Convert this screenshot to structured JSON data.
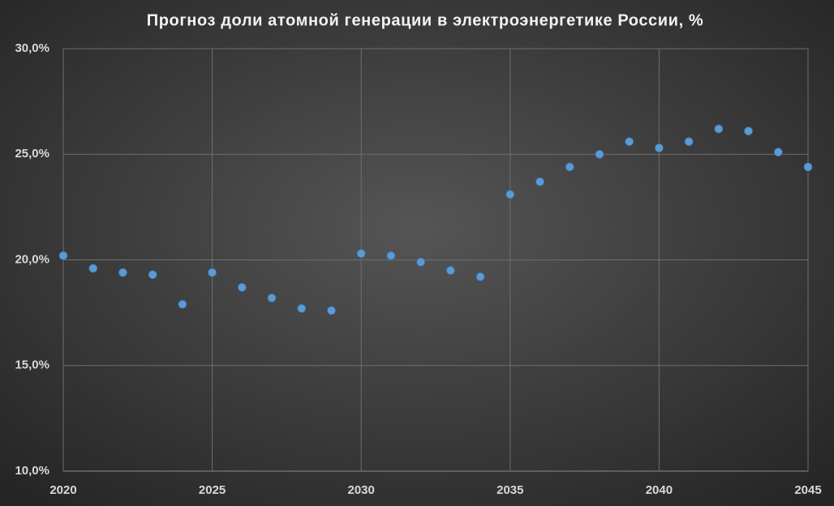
{
  "chart_data": {
    "type": "scatter",
    "title": "Прогноз доли атомной генерации в электроэнергетике России, %",
    "x": [
      2020,
      2021,
      2022,
      2023,
      2024,
      2025,
      2026,
      2027,
      2028,
      2029,
      2030,
      2031,
      2032,
      2033,
      2034,
      2035,
      2036,
      2037,
      2038,
      2039,
      2040,
      2041,
      2042,
      2043,
      2044,
      2045
    ],
    "values": [
      20.2,
      19.6,
      19.4,
      19.3,
      17.9,
      19.4,
      18.7,
      18.2,
      17.7,
      17.6,
      20.3,
      20.2,
      19.9,
      19.5,
      19.2,
      23.1,
      23.7,
      24.4,
      25.0,
      25.6,
      25.3,
      25.6,
      26.2,
      26.1,
      25.1,
      24.4
    ],
    "color": "#5b9bd5",
    "xlim": [
      2020,
      2045
    ],
    "xticks": [
      2020,
      2025,
      2030,
      2035,
      2040,
      2045
    ],
    "ylim": [
      10,
      30
    ],
    "yticks": [
      {
        "value": 10,
        "label": "10,0%"
      },
      {
        "value": 15,
        "label": "15,0%"
      },
      {
        "value": 20,
        "label": "20,0%"
      },
      {
        "value": 25,
        "label": "25,0%"
      },
      {
        "value": 30,
        "label": "30,0%"
      }
    ],
    "grid": true
  }
}
